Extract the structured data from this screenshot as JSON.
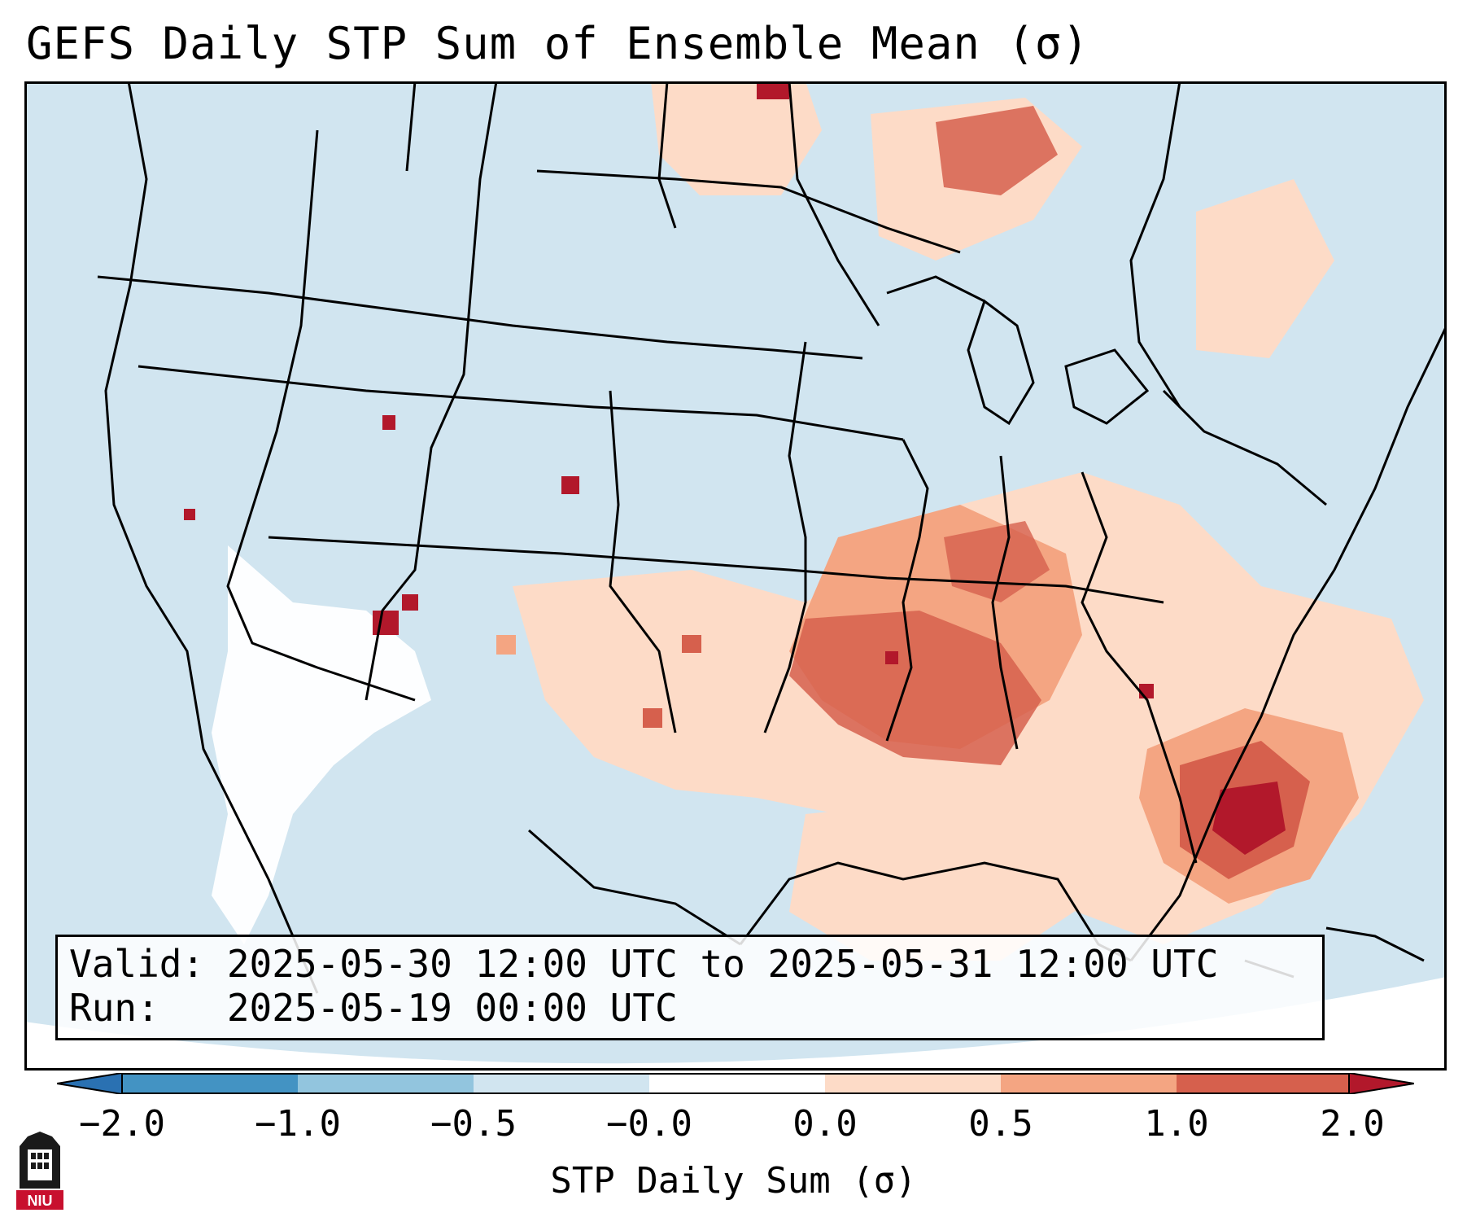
{
  "title": "GEFS Daily STP Sum of Ensemble Mean (σ)",
  "info": {
    "valid": "Valid: 2025-05-30 12:00 UTC to 2025-05-31 12:00 UTC",
    "run": "Run:   2025-05-19 00:00 UTC"
  },
  "colorbar": {
    "label": "STP Daily Sum (σ)",
    "ticks": [
      "−2.0",
      "−1.0",
      "−0.5",
      "−0.0",
      "0.0",
      "0.5",
      "1.0",
      "2.0"
    ],
    "colors": [
      "#2a71b2",
      "#4393c3",
      "#92c5de",
      "#d1e5f0",
      "#fddbc7",
      "#f4a582",
      "#d6604d",
      "#b2182b"
    ],
    "extend": "both"
  },
  "legend_colors": {
    "background": "#d1e5f0",
    "light_positive": "#fddbc7",
    "moderate_positive": "#f4a582",
    "strong_positive": "#d6604d",
    "extreme_positive": "#b2182b",
    "missing": "#ffffff"
  },
  "logo": {
    "text": "NIU",
    "color": "#c8102e"
  }
}
